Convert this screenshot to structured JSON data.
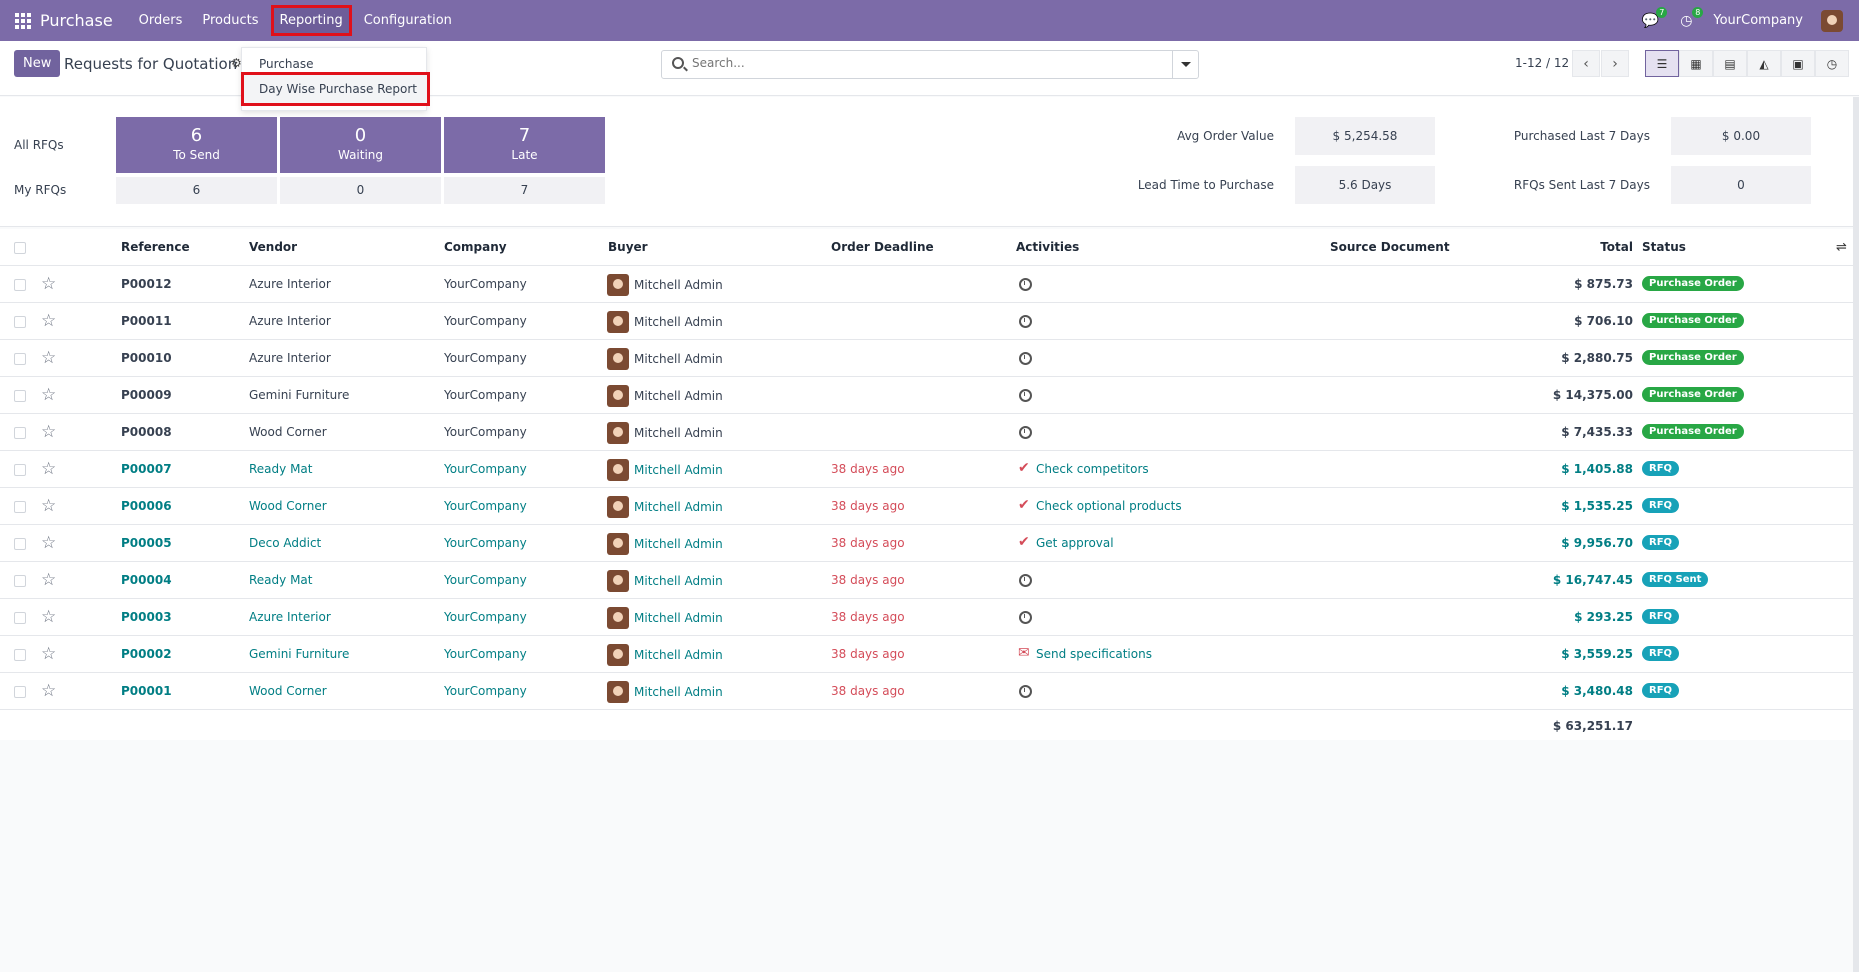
{
  "navbar": {
    "brand": "Purchase",
    "menu": [
      "Orders",
      "Products",
      "Reporting",
      "Configuration"
    ],
    "messages_count": "7",
    "activities_count": "8",
    "company": "YourCompany"
  },
  "control": {
    "new_label": "New",
    "title": "Requests for Quotation",
    "search_placeholder": "Search...",
    "pager": "1-12 / 12"
  },
  "dropdown": {
    "header": "Purchase",
    "item": "Day Wise Purchase Report"
  },
  "dashboard": {
    "all_label": "All RFQs",
    "my_label": "My RFQs",
    "tiles": [
      {
        "num": "6",
        "label": "To Send",
        "mine": "6"
      },
      {
        "num": "0",
        "label": "Waiting",
        "mine": "0"
      },
      {
        "num": "7",
        "label": "Late",
        "mine": "7"
      }
    ],
    "kpis": {
      "avg_label": "Avg Order Value",
      "avg_value": "$ 5,254.58",
      "lead_label": "Lead Time to Purchase",
      "lead_value": "5.6 Days",
      "purchased_label": "Purchased Last 7 Days",
      "purchased_value": "$ 0.00",
      "sent_label": "RFQs Sent Last 7 Days",
      "sent_value": "0"
    }
  },
  "table": {
    "headers": {
      "reference": "Reference",
      "vendor": "Vendor",
      "company": "Company",
      "buyer": "Buyer",
      "deadline": "Order Deadline",
      "activities": "Activities",
      "source": "Source Document",
      "total": "Total",
      "status": "Status"
    },
    "rows": [
      {
        "ref": "P00012",
        "vendor": "Azure Interior",
        "company": "YourCompany",
        "buyer": "Mitchell Admin",
        "deadline": "",
        "activity": "",
        "total": "$ 875.73",
        "status": "Purchase Order"
      },
      {
        "ref": "P00011",
        "vendor": "Azure Interior",
        "company": "YourCompany",
        "buyer": "Mitchell Admin",
        "deadline": "",
        "activity": "",
        "total": "$ 706.10",
        "status": "Purchase Order"
      },
      {
        "ref": "P00010",
        "vendor": "Azure Interior",
        "company": "YourCompany",
        "buyer": "Mitchell Admin",
        "deadline": "",
        "activity": "",
        "total": "$ 2,880.75",
        "status": "Purchase Order"
      },
      {
        "ref": "P00009",
        "vendor": "Gemini Furniture",
        "company": "YourCompany",
        "buyer": "Mitchell Admin",
        "deadline": "",
        "activity": "",
        "total": "$ 14,375.00",
        "status": "Purchase Order"
      },
      {
        "ref": "P00008",
        "vendor": "Wood Corner",
        "company": "YourCompany",
        "buyer": "Mitchell Admin",
        "deadline": "",
        "activity": "",
        "total": "$ 7,435.33",
        "status": "Purchase Order"
      },
      {
        "ref": "P00007",
        "vendor": "Ready Mat",
        "company": "YourCompany",
        "buyer": "Mitchell Admin",
        "deadline": "38 days ago",
        "activity": "Check competitors",
        "total": "$ 1,405.88",
        "status": "RFQ"
      },
      {
        "ref": "P00006",
        "vendor": "Wood Corner",
        "company": "YourCompany",
        "buyer": "Mitchell Admin",
        "deadline": "38 days ago",
        "activity": "Check optional products",
        "total": "$ 1,535.25",
        "status": "RFQ"
      },
      {
        "ref": "P00005",
        "vendor": "Deco Addict",
        "company": "YourCompany",
        "buyer": "Mitchell Admin",
        "deadline": "38 days ago",
        "activity": "Get approval",
        "total": "$ 9,956.70",
        "status": "RFQ"
      },
      {
        "ref": "P00004",
        "vendor": "Ready Mat",
        "company": "YourCompany",
        "buyer": "Mitchell Admin",
        "deadline": "38 days ago",
        "activity": "",
        "total": "$ 16,747.45",
        "status": "RFQ Sent"
      },
      {
        "ref": "P00003",
        "vendor": "Azure Interior",
        "company": "YourCompany",
        "buyer": "Mitchell Admin",
        "deadline": "38 days ago",
        "activity": "",
        "total": "$ 293.25",
        "status": "RFQ"
      },
      {
        "ref": "P00002",
        "vendor": "Gemini Furniture",
        "company": "YourCompany",
        "buyer": "Mitchell Admin",
        "deadline": "38 days ago",
        "activity": "Send specifications",
        "total": "$ 3,559.25",
        "status": "RFQ"
      },
      {
        "ref": "P00001",
        "vendor": "Wood Corner",
        "company": "YourCompany",
        "buyer": "Mitchell Admin",
        "deadline": "38 days ago",
        "activity": "",
        "total": "$ 3,480.48",
        "status": "RFQ"
      }
    ],
    "sum_total": "$ 63,251.17"
  },
  "colors": {
    "navbar": "#7c6ba8",
    "link": "#017e84",
    "late": "#d44c59",
    "badge_po": "#28a745",
    "badge_rfq": "#17a2b8"
  }
}
